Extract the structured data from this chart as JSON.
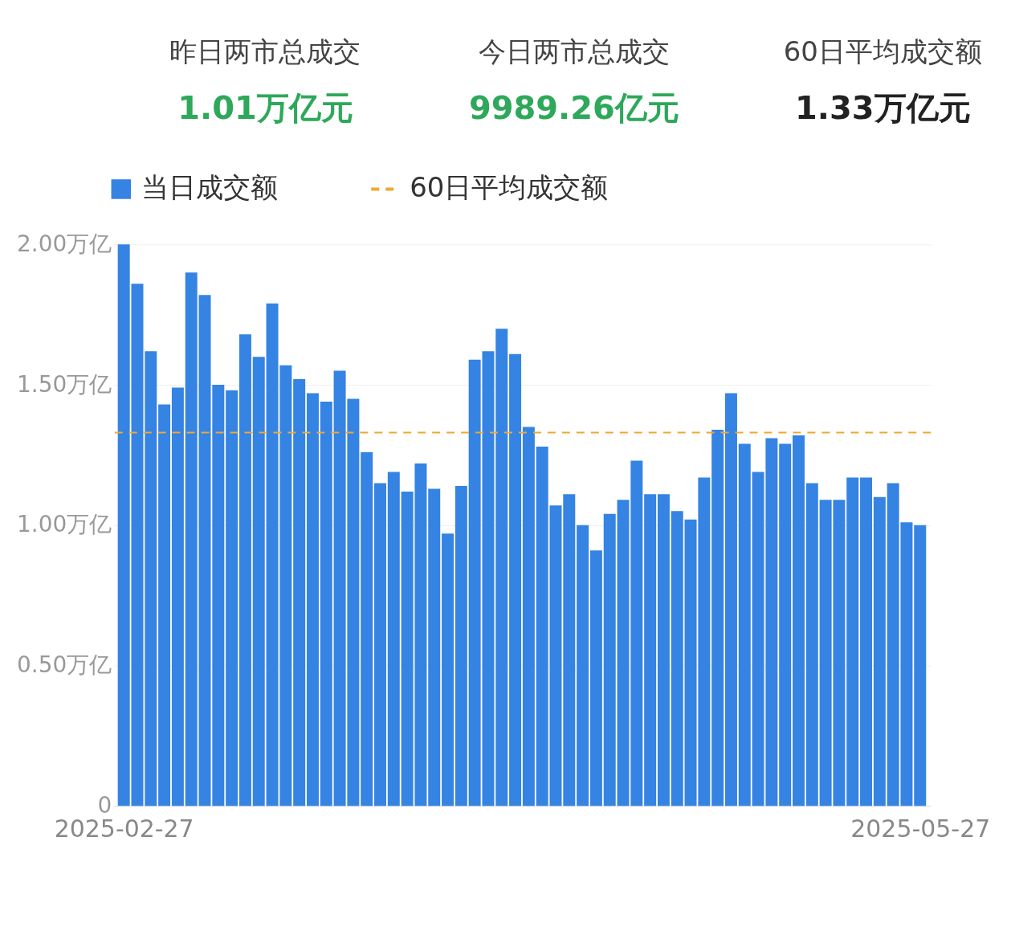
{
  "chart_data": [
    {
      "type": "other",
      "annotations": [
        "昨日两市总成交",
        "1.01万亿元",
        "今日两市总成交",
        "9989.26亿元",
        "60日平均成交额",
        "1.33万亿元"
      ]
    },
    {
      "type": "bar",
      "categories": [
        "2025-02-27",
        null,
        null,
        null,
        null,
        null,
        null,
        null,
        null,
        null,
        null,
        null,
        null,
        null,
        null,
        null,
        null,
        null,
        null,
        null,
        null,
        null,
        null,
        null,
        null,
        null,
        null,
        null,
        null,
        null,
        null,
        null,
        null,
        null,
        null,
        null,
        null,
        null,
        null,
        null,
        null,
        null,
        null,
        null,
        null,
        null,
        null,
        null,
        null,
        null,
        null,
        null,
        null,
        null,
        null,
        null,
        null,
        null,
        null,
        "2025-05-27"
      ],
      "series": [
        {
          "name": "当日成交额",
          "color": "#3583e3",
          "values": [
            2.0,
            1.86,
            1.62,
            1.43,
            1.49,
            1.9,
            1.82,
            1.5,
            1.48,
            1.68,
            1.6,
            1.79,
            1.57,
            1.52,
            1.47,
            1.44,
            1.55,
            1.45,
            1.26,
            1.15,
            1.19,
            1.12,
            1.22,
            1.13,
            0.97,
            1.14,
            1.59,
            1.62,
            1.7,
            1.61,
            1.35,
            1.28,
            1.07,
            1.11,
            1.0,
            0.91,
            1.04,
            1.09,
            1.23,
            1.11,
            1.11,
            1.05,
            1.02,
            1.17,
            1.34,
            1.47,
            1.29,
            1.19,
            1.31,
            1.29,
            1.32,
            1.15,
            1.09,
            1.09,
            1.17,
            1.17,
            1.1,
            1.15,
            1.01,
            1.0
          ]
        }
      ],
      "ylim": [
        0,
        2
      ],
      "yticks": [
        0,
        {
          "value": 0.5,
          "label": "0.50万亿"
        },
        {
          "value": 1,
          "label": "1.00万亿"
        },
        {
          "value": 1.5,
          "label": "1.50万亿"
        },
        {
          "value": 2,
          "label": "2.00万亿"
        }
      ],
      "grid": "y",
      "legend": "top left",
      "ref_lines": [
        {
          "axis": "y",
          "value": 1.33,
          "label": "60日平均成交额",
          "color": "#f0a830",
          "line_style": "dashed"
        }
      ]
    }
  ]
}
